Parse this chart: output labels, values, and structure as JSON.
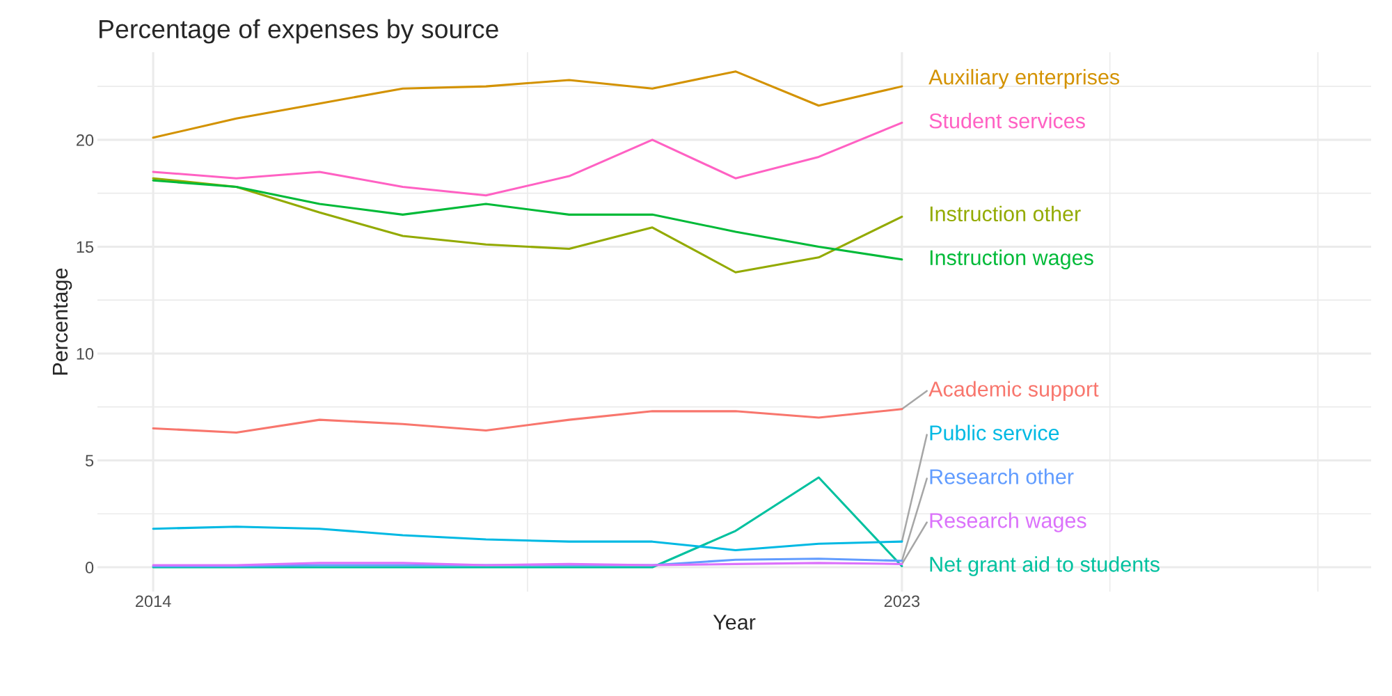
{
  "chart_data": {
    "type": "line",
    "title": "Percentage of expenses by source",
    "xlabel": "Year",
    "ylabel": "Percentage",
    "x": [
      2014,
      2015,
      2016,
      2017,
      2018,
      2019,
      2020,
      2021,
      2022,
      2023
    ],
    "xlim": [
      2013.33,
      2028.64
    ],
    "xticks": [
      2014,
      {
        "value": 2018.5,
        "label": null
      },
      2023,
      {
        "value": 2025.5,
        "label": null
      },
      {
        "value": 2028,
        "label": null
      }
    ],
    "ylim": [
      -1.14,
      24.1
    ],
    "yticks": [
      0,
      {
        "value": 2.5,
        "label": null
      },
      5,
      {
        "value": 7.5,
        "label": null
      },
      10,
      {
        "value": 12.5,
        "label": null
      },
      15,
      {
        "value": 17.5,
        "label": null
      },
      20,
      {
        "value": 22.5,
        "label": null
      }
    ],
    "grid": true,
    "marker": "none",
    "line_style": "solid",
    "series": [
      {
        "name": "Academic support",
        "color": "#f8766d",
        "values": [
          6.5,
          6.3,
          6.9,
          6.7,
          6.4,
          6.9,
          7.3,
          7.3,
          7.0,
          7.4
        ]
      },
      {
        "name": "Auxiliary enterprises",
        "color": "#d39200",
        "values": [
          20.1,
          21.0,
          21.7,
          22.4,
          22.5,
          22.8,
          22.4,
          23.2,
          21.6,
          22.5
        ]
      },
      {
        "name": "Instruction other",
        "color": "#93aa00",
        "values": [
          18.2,
          17.8,
          16.6,
          15.5,
          15.1,
          14.9,
          15.9,
          13.8,
          14.5,
          16.4
        ]
      },
      {
        "name": "Instruction wages",
        "color": "#00ba38",
        "values": [
          18.1,
          17.8,
          17.0,
          16.5,
          17.0,
          16.5,
          16.5,
          15.7,
          15.0,
          14.4
        ]
      },
      {
        "name": "Net grant aid to students",
        "color": "#00c19f",
        "values": [
          0,
          0,
          0,
          0,
          0,
          0,
          0,
          1.7,
          4.2,
          0.05
        ]
      },
      {
        "name": "Public service",
        "color": "#00b9e3",
        "values": [
          1.8,
          1.9,
          1.8,
          1.5,
          1.3,
          1.2,
          1.2,
          0.8,
          1.1,
          1.2
        ]
      },
      {
        "name": "Research other",
        "color": "#619cff",
        "values": [
          0.05,
          0.05,
          0.1,
          0.1,
          0.1,
          0.1,
          0.1,
          0.35,
          0.4,
          0.3
        ]
      },
      {
        "name": "Research wages",
        "color": "#db72fb",
        "values": [
          0.1,
          0.1,
          0.2,
          0.2,
          0.1,
          0.15,
          0.1,
          0.15,
          0.2,
          0.15
        ]
      },
      {
        "name": "Student services",
        "color": "#ff61c3",
        "values": [
          18.5,
          18.2,
          18.5,
          17.8,
          17.4,
          18.3,
          20.0,
          18.2,
          19.2,
          20.8
        ]
      }
    ]
  }
}
